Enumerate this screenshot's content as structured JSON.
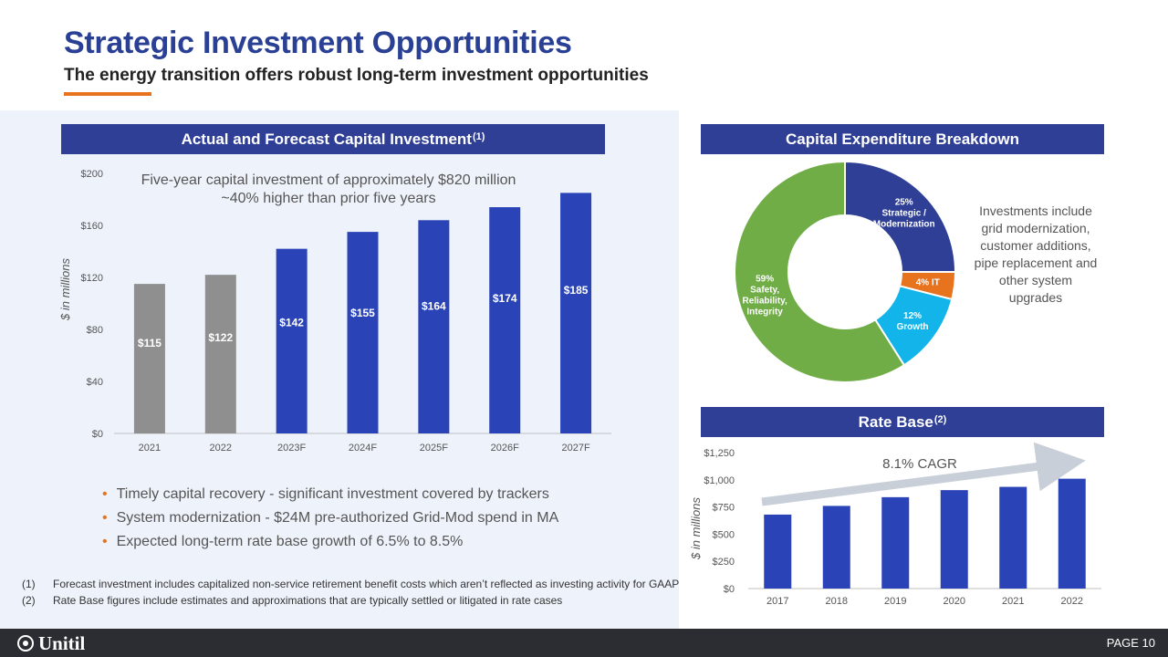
{
  "header": {
    "title": "Strategic Investment Opportunities",
    "subtitle": "The energy transition offers robust long-term investment opportunities"
  },
  "capital_chart": {
    "band_title": "Actual and Forecast Capital Investment",
    "band_sup": "(1)",
    "annotation_line1": "Five-year capital investment of approximately $820 million",
    "annotation_line2": "~40% higher than prior five years"
  },
  "bullets": [
    "Timely capital recovery -  significant investment covered by trackers",
    "System modernization -  $24M pre-authorized Grid-Mod spend in MA",
    "Expected long-term rate base growth of 6.5% to 8.5%"
  ],
  "footnotes": [
    {
      "num": "(1)",
      "text": "Forecast investment includes capitalized non-service retirement benefit costs which aren’t reflected as investing activity for GAAP"
    },
    {
      "num": "(2)",
      "text": "Rate Base figures include estimates and approximations that are typically settled or litigated in rate cases"
    }
  ],
  "capex_chart": {
    "band_title": "Capital Expenditure Breakdown",
    "side_note": "Investments include grid modernization, customer additions, pipe replacement and other system upgrades"
  },
  "rate_base_chart": {
    "band_title": "Rate Base",
    "band_sup": "(2)",
    "cagr_label": "8.1% CAGR"
  },
  "footer": {
    "logo": "Unitil",
    "page": "PAGE 10"
  },
  "colors": {
    "brand_blue": "#2e3f95",
    "actual_gray": "#8f8f8f",
    "forecast_blue": "#2a44b8",
    "accent_orange": "#e8731e",
    "pie_green": "#70ad47",
    "pie_cyan": "#12b4ea"
  },
  "chart_data": [
    {
      "type": "bar",
      "title": "Actual and Forecast Capital Investment",
      "ylabel": "$ in millions",
      "categories": [
        "2021",
        "2022",
        "2023F",
        "2024F",
        "2025F",
        "2026F",
        "2027F"
      ],
      "values": [
        115,
        122,
        142,
        155,
        164,
        174,
        185
      ],
      "data_labels": [
        "$115",
        "$122",
        "$142",
        "$155",
        "$164",
        "$174",
        "$185"
      ],
      "actual_count": 2,
      "ylim": [
        0,
        200
      ],
      "yticks": [
        0,
        40,
        80,
        120,
        160,
        200
      ],
      "ytick_labels": [
        "$0",
        "$40",
        "$80",
        "$120",
        "$160",
        "$200"
      ]
    },
    {
      "type": "pie",
      "title": "Capital Expenditure Breakdown",
      "donut": true,
      "slices": [
        {
          "label_lines": [
            "25%",
            "Strategic /",
            "Modernization"
          ],
          "value": 25,
          "color": "#2e3f95"
        },
        {
          "label_lines": [
            "4%  IT"
          ],
          "value": 4,
          "color": "#e8731e"
        },
        {
          "label_lines": [
            "12%",
            "Growth"
          ],
          "value": 12,
          "color": "#12b4ea"
        },
        {
          "label_lines": [
            "59%",
            "Safety,",
            "Reliability,",
            "Integrity"
          ],
          "value": 59,
          "color": "#70ad47"
        }
      ]
    },
    {
      "type": "bar",
      "title": "Rate Base",
      "ylabel": "$ in millions",
      "categories": [
        "2017",
        "2018",
        "2019",
        "2020",
        "2021",
        "2022"
      ],
      "values": [
        680,
        760,
        840,
        905,
        935,
        1010
      ],
      "ylim": [
        0,
        1250
      ],
      "yticks": [
        0,
        250,
        500,
        750,
        1000,
        1250
      ],
      "ytick_labels": [
        "$0",
        "$250",
        "$500",
        "$750",
        "$1,000",
        "$1,250"
      ],
      "annotation": "8.1% CAGR"
    }
  ]
}
